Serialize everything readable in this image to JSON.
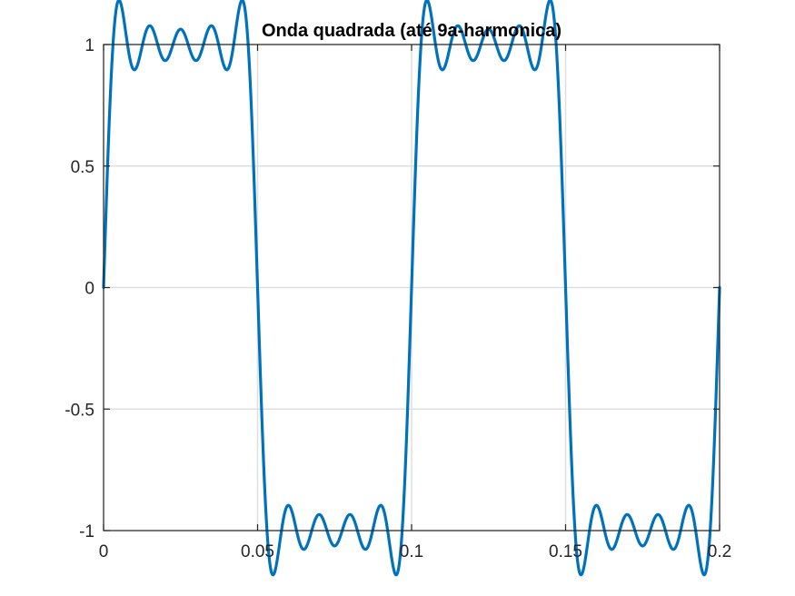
{
  "chart_data": {
    "type": "line",
    "title": "Onda quadrada (até 9a-harmonica)",
    "xlabel": "",
    "ylabel": "",
    "xlim": [
      0,
      0.2
    ],
    "ylim": [
      -1,
      1
    ],
    "xticks": [
      0,
      0.05,
      0.1,
      0.15,
      0.2
    ],
    "xtick_labels": [
      "0",
      "0.05",
      "0.1",
      "0.15",
      "0.2"
    ],
    "yticks": [
      -1,
      -0.5,
      0,
      0.5,
      1
    ],
    "ytick_labels": [
      "-1",
      "-0.5",
      "0",
      "0.5",
      "1"
    ],
    "grid": true,
    "series": [
      {
        "fundamental_frequency_hz": 10,
        "harmonics": [
          1,
          3,
          5,
          7,
          9
        ],
        "amplitude": 1,
        "color": "#0072BD"
      }
    ]
  },
  "colors": {
    "background": "#ffffff",
    "axes": "#262626",
    "grid": "#dfdfdf",
    "line": "#0072BD"
  }
}
